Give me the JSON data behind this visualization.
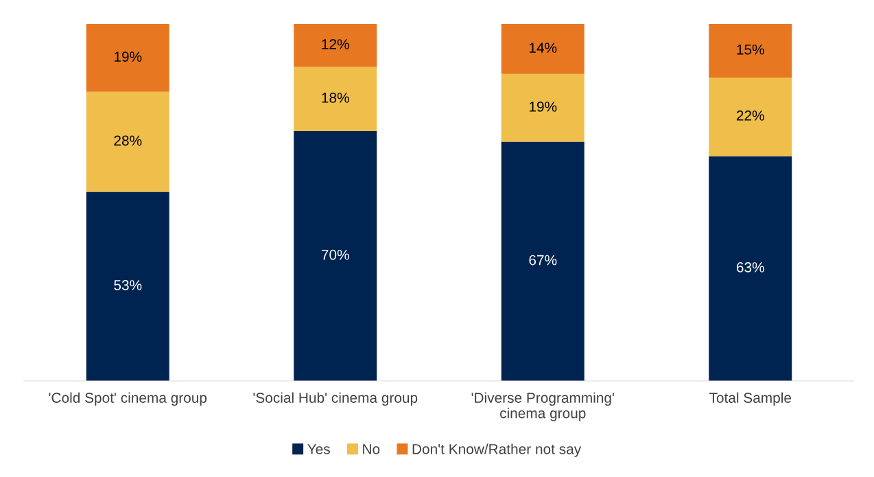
{
  "chart_data": {
    "type": "bar",
    "stacked": true,
    "categories": [
      "'Cold Spot' cinema group",
      "'Social Hub' cinema group",
      "'Diverse Programming'\ncinema group",
      "Total Sample"
    ],
    "series": [
      {
        "name": "Yes",
        "color": "#002451",
        "values": [
          53,
          70,
          67,
          63
        ],
        "value_labels": [
          "53%",
          "70%",
          "67%",
          "63%"
        ]
      },
      {
        "name": "No",
        "color": "#f0be4a",
        "values": [
          28,
          18,
          19,
          22
        ],
        "value_labels": [
          "28%",
          "18%",
          "19%",
          "22%"
        ]
      },
      {
        "name": "Don't Know/Rather not say",
        "color": "#e87722",
        "values": [
          19,
          12,
          14,
          15
        ],
        "value_labels": [
          "19%",
          "12%",
          "14%",
          "15%"
        ]
      }
    ],
    "ylim": [
      0,
      100
    ],
    "tick_labels": "x",
    "legend": "bottom",
    "grid": false
  }
}
